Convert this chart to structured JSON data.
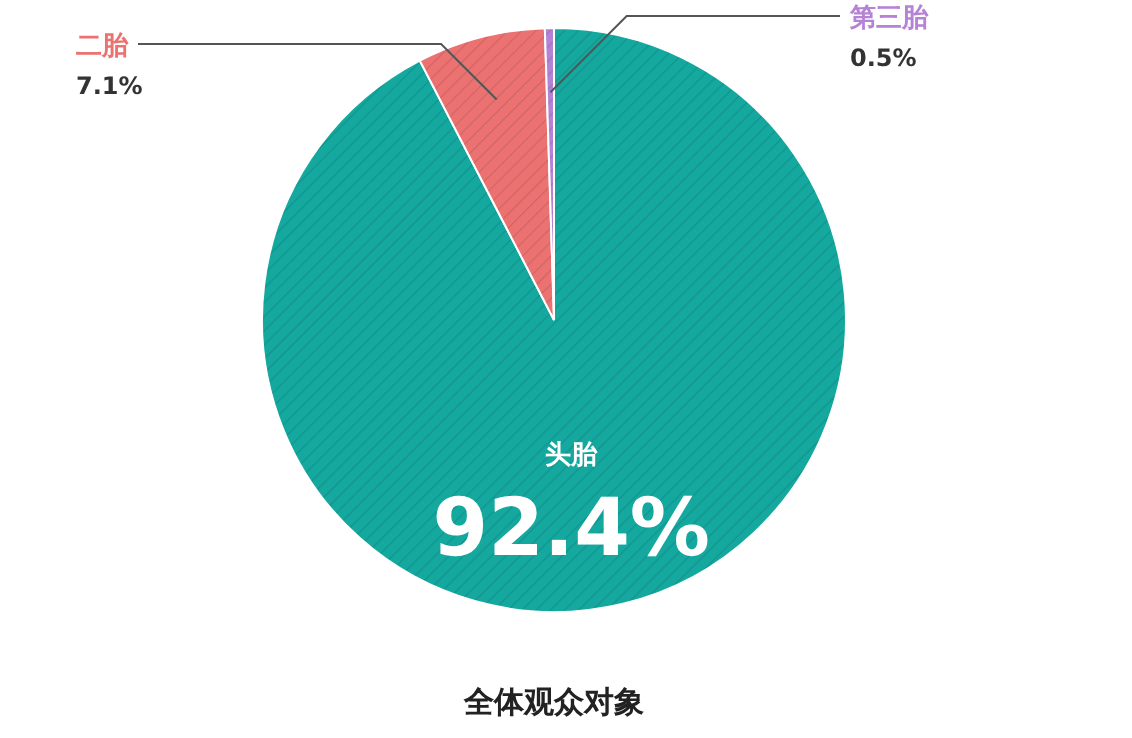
{
  "chart_data": {
    "type": "pie",
    "title": "全体观众对象",
    "categories": [
      "头胎",
      "二胎",
      "第三胎"
    ],
    "values": [
      92.4,
      7.1,
      0.5
    ],
    "value_labels": [
      "92.4%",
      "7.1%",
      "0.5%"
    ],
    "colors": [
      "#14a89f",
      "#ec7272",
      "#b583d6"
    ]
  }
}
